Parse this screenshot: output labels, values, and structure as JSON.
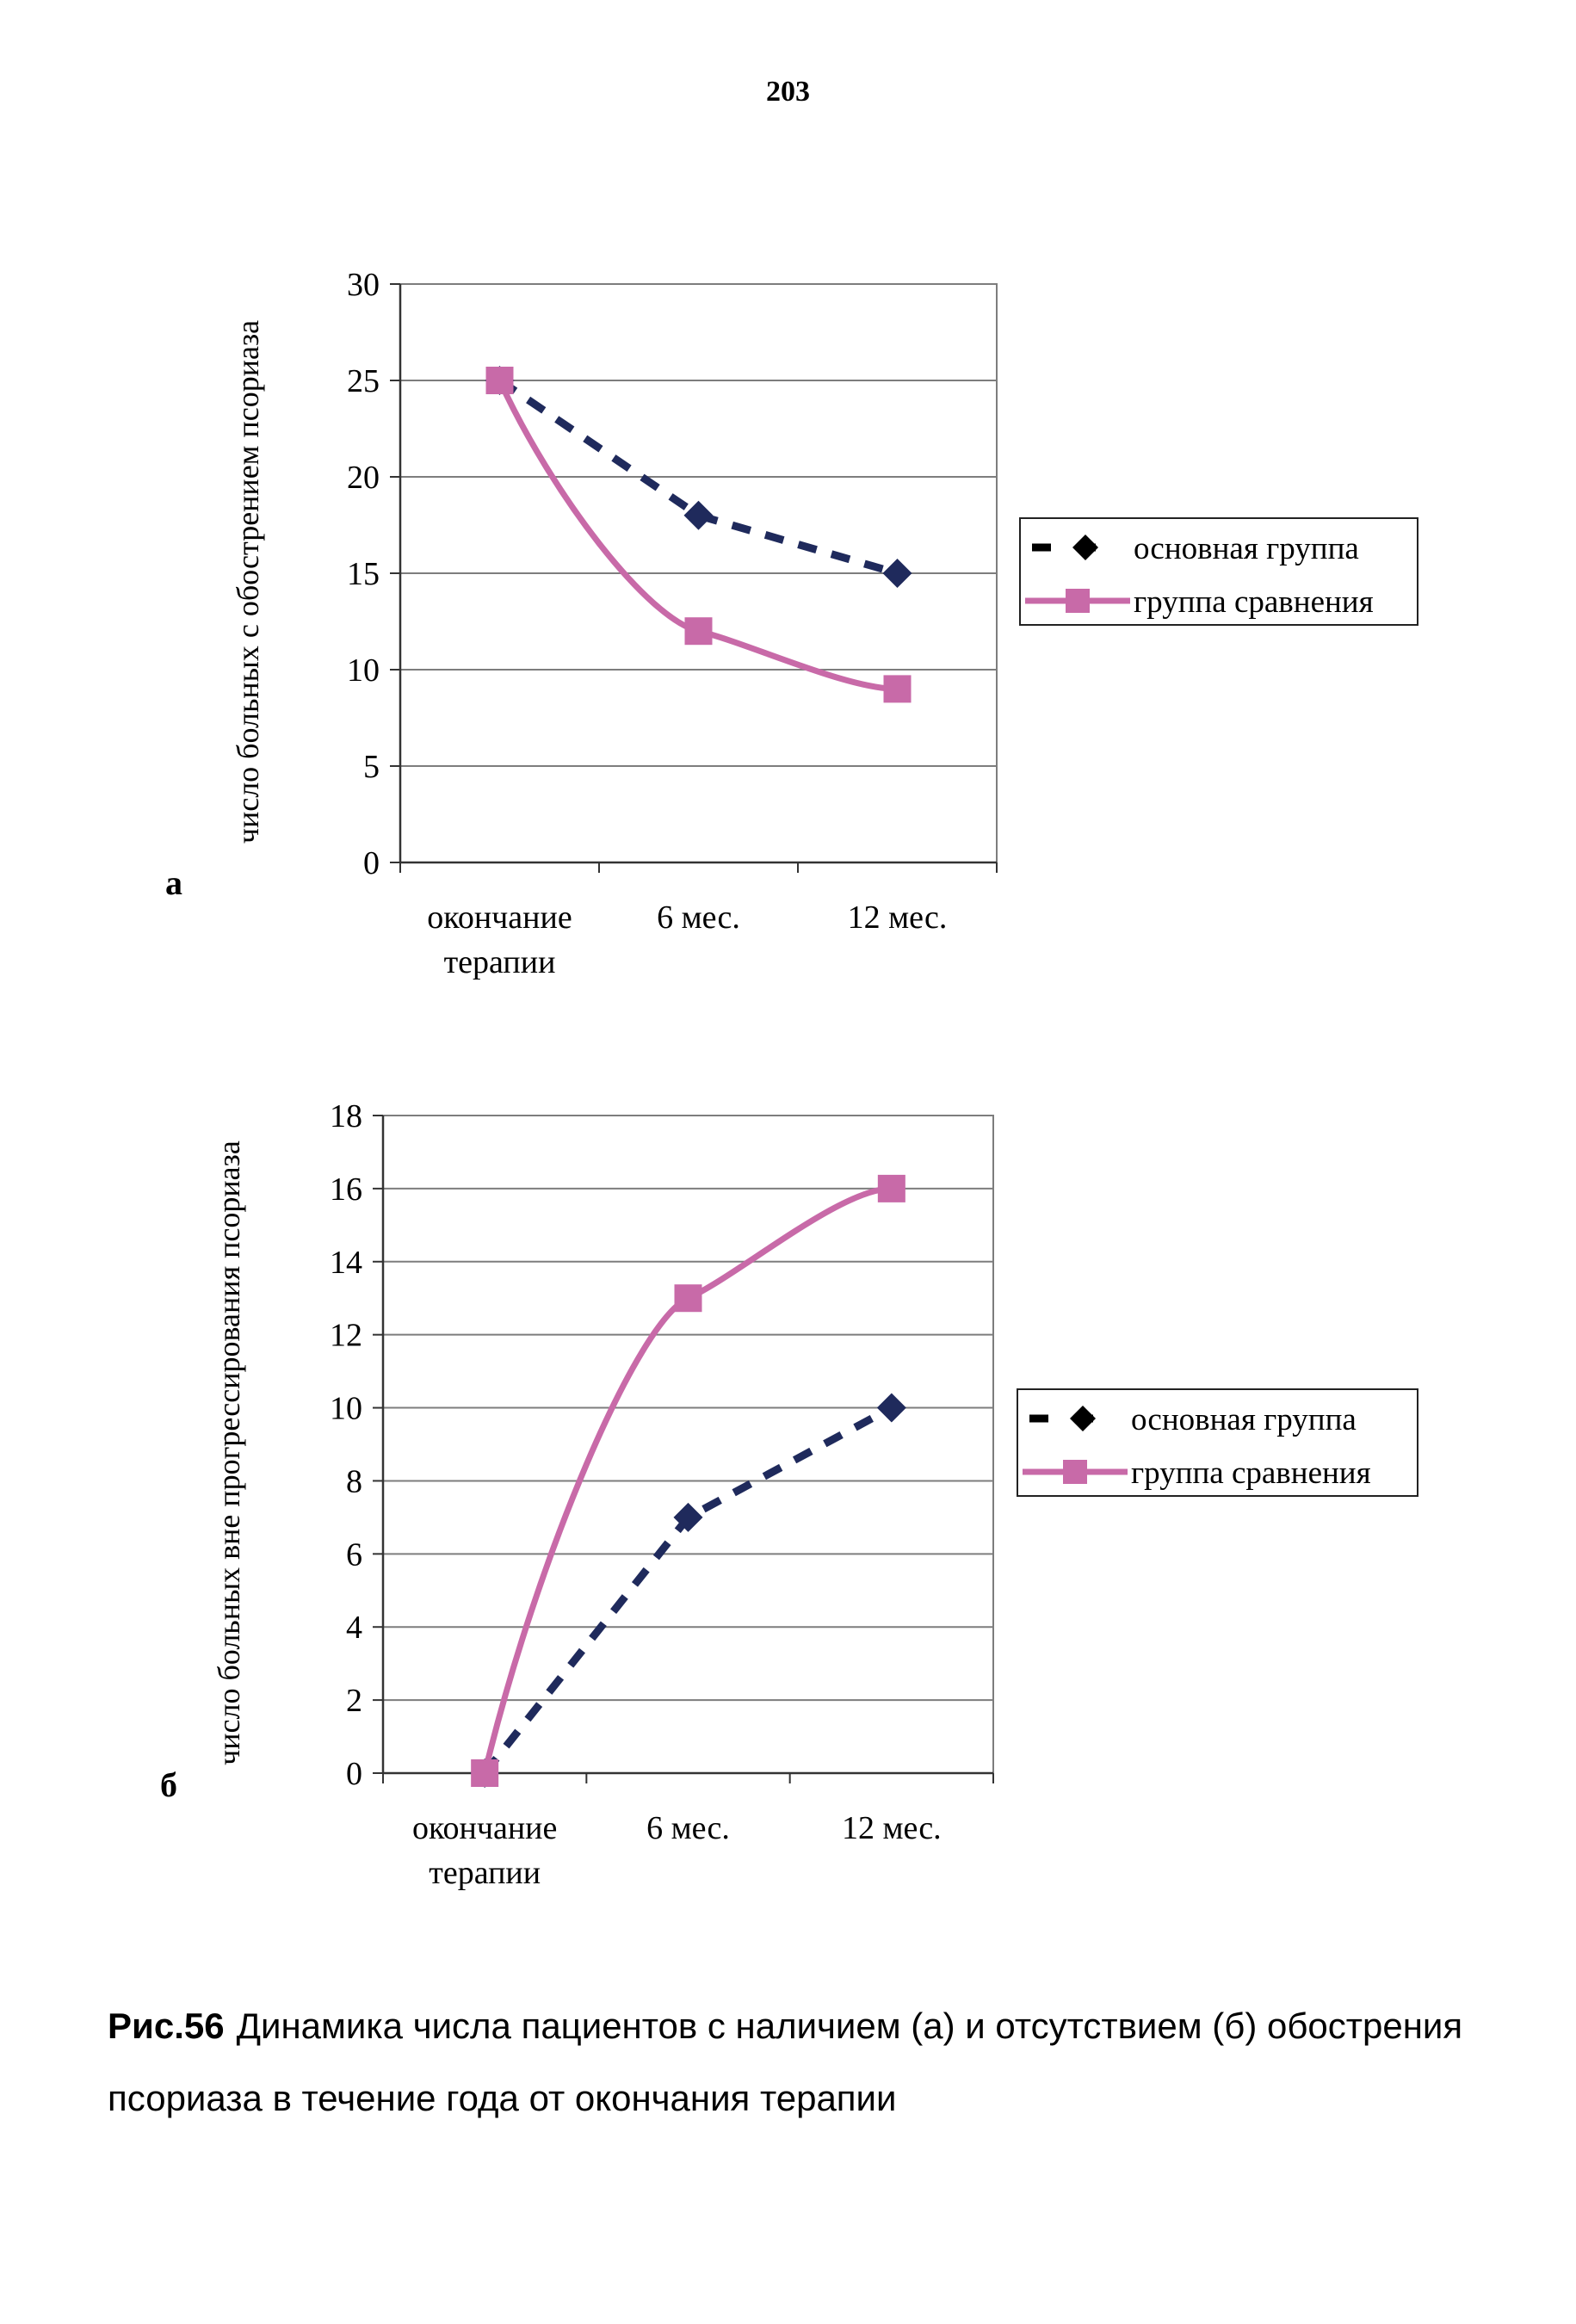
{
  "page": {
    "number": "203"
  },
  "panels": [
    {
      "letter": "а"
    },
    {
      "letter": "б"
    }
  ],
  "caption": {
    "figure_number": "Рис.56",
    "text_line1": "Динамика числа пациентов с наличием (а) и отсутствием (б) обострения",
    "text_line2": "псориаза в течение года от окончания терапии"
  },
  "colors": {
    "main_group": "#1f2a5c",
    "comparison_group": "#c86aa8",
    "grid": "#7d7d7d",
    "axis": "#333333"
  },
  "chart_data": [
    {
      "type": "line",
      "panel": "а",
      "categories": [
        "окончание терапии",
        "6 мес.",
        "12 мес."
      ],
      "category_lines": [
        [
          "окончание",
          "терапии"
        ],
        [
          "6 мес."
        ],
        [
          "12 мес."
        ]
      ],
      "ylabel": "число больных с обострением псориаза",
      "xlabel": "",
      "ylim": [
        0,
        30
      ],
      "yticks": [
        0,
        5,
        10,
        15,
        20,
        25,
        30
      ],
      "grid": true,
      "legend_position": "right",
      "series": [
        {
          "name": "основная группа",
          "values": [
            25,
            18,
            15
          ],
          "style": "dashed",
          "marker": "diamond",
          "color": "#1f2a5c"
        },
        {
          "name": "группа сравнения",
          "values": [
            25,
            12,
            9
          ],
          "style": "solid",
          "marker": "square",
          "color": "#c86aa8"
        }
      ]
    },
    {
      "type": "line",
      "panel": "б",
      "categories": [
        "окончание терапии",
        "6 мес.",
        "12 мес."
      ],
      "category_lines": [
        [
          "окончание",
          "терапии"
        ],
        [
          "6 мес."
        ],
        [
          "12 мес."
        ]
      ],
      "ylabel": "число больных вне прогрессирования псориаза",
      "xlabel": "",
      "ylim": [
        0,
        18
      ],
      "yticks": [
        0,
        2,
        4,
        6,
        8,
        10,
        12,
        14,
        16,
        18
      ],
      "grid": true,
      "legend_position": "right",
      "series": [
        {
          "name": "основная группа",
          "values": [
            0,
            7,
            10
          ],
          "style": "dashed",
          "marker": "diamond",
          "color": "#1f2a5c"
        },
        {
          "name": "группа сравнения",
          "values": [
            0,
            13,
            16
          ],
          "style": "solid",
          "marker": "square",
          "color": "#c86aa8"
        }
      ]
    }
  ]
}
